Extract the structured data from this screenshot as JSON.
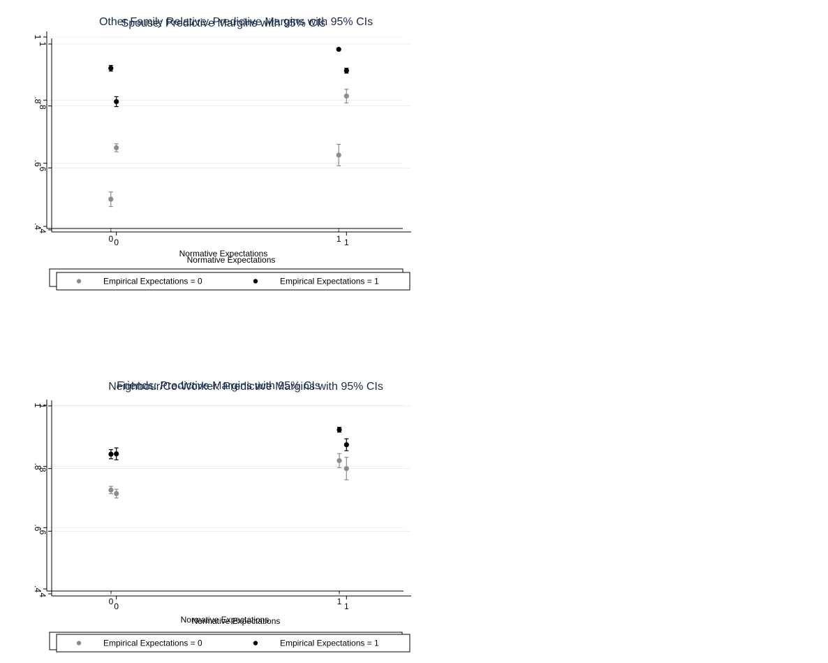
{
  "chart_data": [
    {
      "type": "scatter",
      "title": "Spouse: Predictive Margins with 95% CIs",
      "xlabel": "Normative Expectations",
      "ylabel": "",
      "x_ticks": [
        "0",
        "1"
      ],
      "y_ticks": [
        "1",
        ".8",
        ".6",
        ".4"
      ],
      "ylim": [
        0.4,
        1.0
      ],
      "grid": true,
      "legend_position": "bottom",
      "series": [
        {
          "name": "Empirical Expectations = 0",
          "color": "#8c8c8c",
          "points": [
            {
              "x": 0,
              "y": 0.486,
              "lo": 0.463,
              "hi": 0.509
            },
            {
              "x": 1,
              "y": 0.626,
              "lo": 0.592,
              "hi": 0.66
            }
          ]
        },
        {
          "name": "Empirical Expectations = 1",
          "color": "#000000",
          "points": [
            {
              "x": 0,
              "y": 0.901,
              "lo": 0.892,
              "hi": 0.91
            },
            {
              "x": 1,
              "y": 0.961,
              "lo": 0.958,
              "hi": 0.964
            }
          ]
        }
      ]
    },
    {
      "type": "scatter",
      "title": "Other Family Relative: Predictive Margins with 95% CIs",
      "xlabel": "Normative Expectations",
      "ylabel": "",
      "x_ticks": [
        "0",
        "1"
      ],
      "y_ticks": [
        "1",
        ".8",
        ".6",
        ".4"
      ],
      "ylim": [
        0.4,
        1.0
      ],
      "grid": true,
      "legend_position": "bottom",
      "series": [
        {
          "name": "Empirical Expectations = 0",
          "color": "#8c8c8c",
          "points": [
            {
              "x": 0,
              "y": 0.665,
              "lo": 0.652,
              "hi": 0.678
            },
            {
              "x": 1,
              "y": 0.832,
              "lo": 0.81,
              "hi": 0.854
            }
          ]
        },
        {
          "name": "Empirical Expectations = 1",
          "color": "#000000",
          "points": [
            {
              "x": 0,
              "y": 0.814,
              "lo": 0.798,
              "hi": 0.83
            },
            {
              "x": 1,
              "y": 0.914,
              "lo": 0.906,
              "hi": 0.922
            }
          ]
        }
      ]
    },
    {
      "type": "scatter",
      "title": "Friends: Predictive Margins with 95% CIs",
      "xlabel": "Normative Expectations",
      "ylabel": "",
      "x_ticks": [
        "0",
        "1"
      ],
      "y_ticks": [
        "1",
        ".8",
        ".6",
        ".4"
      ],
      "ylim": [
        0.4,
        1.0
      ],
      "grid": true,
      "legend_position": "bottom",
      "series": [
        {
          "name": "Empirical Expectations = 0",
          "color": "#8c8c8c",
          "points": [
            {
              "x": 0,
              "y": 0.723,
              "lo": 0.711,
              "hi": 0.735
            },
            {
              "x": 1,
              "y": 0.819,
              "lo": 0.796,
              "hi": 0.842
            }
          ]
        },
        {
          "name": "Empirical Expectations = 1",
          "color": "#000000",
          "points": [
            {
              "x": 0,
              "y": 0.84,
              "lo": 0.825,
              "hi": 0.855
            },
            {
              "x": 1,
              "y": 0.92,
              "lo": 0.912,
              "hi": 0.928
            }
          ]
        }
      ]
    },
    {
      "type": "scatter",
      "title": "Neighbour/Co-Worker: Predictive Margins with 95% CIs",
      "xlabel": "Normative Expectations",
      "ylabel": "",
      "x_ticks": [
        "0",
        "1"
      ],
      "y_ticks": [
        "1",
        ".8",
        ".6",
        ".4"
      ],
      "ylim": [
        0.4,
        1.0
      ],
      "grid": true,
      "legend_position": "bottom",
      "series": [
        {
          "name": "Empirical Expectations = 0",
          "color": "#8c8c8c",
          "points": [
            {
              "x": 0,
              "y": 0.72,
              "lo": 0.706,
              "hi": 0.734
            },
            {
              "x": 1,
              "y": 0.8,
              "lo": 0.764,
              "hi": 0.836
            }
          ]
        },
        {
          "name": "Empirical Expectations = 1",
          "color": "#000000",
          "points": [
            {
              "x": 0,
              "y": 0.847,
              "lo": 0.828,
              "hi": 0.866
            },
            {
              "x": 1,
              "y": 0.876,
              "lo": 0.857,
              "hi": 0.895
            }
          ]
        }
      ]
    }
  ]
}
